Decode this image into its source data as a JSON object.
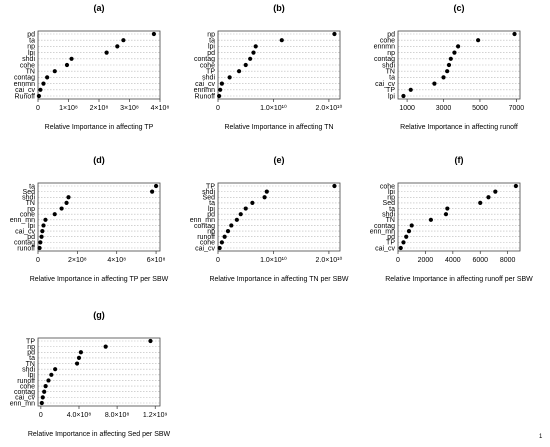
{
  "chart_data": [
    {
      "type": "scatter",
      "title": "(a)",
      "xlabel": "Relative Importance in affecting TP",
      "xlim": [
        0,
        400000000
      ],
      "xticks": [
        0,
        100000000,
        200000000,
        300000000,
        400000000
      ],
      "xtick_labels": [
        "0",
        "1×10⁸",
        "2×10⁸",
        "3×10⁸",
        "4×10⁸"
      ],
      "categories": [
        "pd",
        "ta",
        "np",
        "lpi",
        "shdi",
        "cohe",
        "TN",
        "contag",
        "ennmn",
        "cai_cv",
        "Runoff"
      ],
      "values": [
        380000000,
        280000000,
        260000000,
        225000000,
        110000000,
        95000000,
        55000000,
        30000000,
        18000000,
        8000000,
        3000000
      ]
    },
    {
      "type": "scatter",
      "title": "(b)",
      "xlabel": "Relative Importance in affecting TN",
      "xlim": [
        0,
        22000000000
      ],
      "xticks": [
        0,
        10000000000,
        20000000000
      ],
      "xtick_labels": [
        "0",
        "1.0×10¹⁰",
        "2.0×10¹⁰"
      ],
      "categories": [
        "np",
        "ta",
        "lpi",
        "pd",
        "contag",
        "cohe",
        "TP",
        "shdi",
        "cai_cv",
        "ennmn",
        "Runoff"
      ],
      "values": [
        21000000000,
        11500000000,
        6800000000,
        6400000000,
        5800000000,
        5000000000,
        3800000000,
        2100000000,
        700000000,
        400000000,
        200000000
      ]
    },
    {
      "type": "scatter",
      "title": "(c)",
      "xlabel": "Relative Importance in affecting runoff",
      "xlim": [
        500,
        7200
      ],
      "xticks": [
        1000,
        3000,
        5000,
        7000
      ],
      "xtick_labels": [
        "1000",
        "3000",
        "5000",
        "7000"
      ],
      "categories": [
        "pd",
        "cohe",
        "ennmn",
        "np",
        "contag",
        "shdi",
        "TN",
        "ta",
        "cai_cv",
        "TP",
        "lpi"
      ],
      "values": [
        6900,
        4900,
        3800,
        3600,
        3400,
        3300,
        3200,
        3000,
        2500,
        1200,
        800
      ]
    },
    {
      "type": "scatter",
      "title": "(d)",
      "xlabel": "Relative Importance in affecting TP per SBW",
      "xlim": [
        0,
        620000000
      ],
      "xticks": [
        0,
        200000000,
        400000000,
        600000000
      ],
      "xtick_labels": [
        "0",
        "2×10⁸",
        "4×10⁸",
        "6×10⁸"
      ],
      "categories": [
        "ta",
        "Sed",
        "shdi",
        "TN",
        "np",
        "cohe",
        "enn_mn",
        "lpi",
        "cai_cv",
        "pd",
        "contag",
        "runoff"
      ],
      "values": [
        600000000,
        580000000,
        155000000,
        145000000,
        120000000,
        85000000,
        38000000,
        28000000,
        22000000,
        18000000,
        12000000,
        8000000
      ]
    },
    {
      "type": "scatter",
      "title": "(e)",
      "xlabel": "Relative Importance in affecting TN per SBW",
      "xlim": [
        0,
        22000000000
      ],
      "xticks": [
        0,
        10000000000,
        20000000000
      ],
      "xtick_labels": [
        "0",
        "1.0×10¹⁰",
        "2.0×10¹⁰"
      ],
      "categories": [
        "TP",
        "shdi",
        "Sed",
        "ta",
        "lpi",
        "pd",
        "enn_mn",
        "contag",
        "np",
        "runoff",
        "cohe",
        "cai_cv"
      ],
      "values": [
        21000000000,
        8800000000,
        8400000000,
        6200000000,
        5000000000,
        4100000000,
        3400000000,
        2400000000,
        1800000000,
        1200000000,
        700000000,
        300000000
      ]
    },
    {
      "type": "scatter",
      "title": "(f)",
      "xlabel": "Relative Importance in affecting runoff per SBW",
      "xlim": [
        0,
        8900
      ],
      "xticks": [
        0,
        2000,
        4000,
        6000,
        8000
      ],
      "xtick_labels": [
        "0",
        "2000",
        "4000",
        "6000",
        "8000"
      ],
      "categories": [
        "cohe",
        "lpi",
        "np",
        "Sed",
        "ta",
        "shdi",
        "TN",
        "contag",
        "enn_mn",
        "pd",
        "TP",
        "cai_cv"
      ],
      "values": [
        8600,
        7100,
        6600,
        6000,
        3600,
        3500,
        2400,
        1000,
        800,
        600,
        400,
        200
      ]
    },
    {
      "type": "scatter",
      "title": "(g)",
      "xlabel": "Relative Importance in affecting Sed per SBW",
      "xlim": [
        -30000000,
        1250000000
      ],
      "xticks": [
        0,
        400000000,
        800000000,
        1200000000
      ],
      "xtick_labels": [
        "0",
        "4.0×10⁸",
        "8.0×10⁸",
        "1.2×10⁹"
      ],
      "categories": [
        "TP",
        "np",
        "pd",
        "ta",
        "TN",
        "shdi",
        "lpi",
        "runoff",
        "cohe",
        "contag",
        "cai_cv",
        "enn_mn"
      ],
      "values": [
        1150000000,
        680000000,
        420000000,
        400000000,
        380000000,
        150000000,
        110000000,
        80000000,
        50000000,
        35000000,
        20000000,
        10000000
      ]
    }
  ],
  "corner_mark": "1"
}
